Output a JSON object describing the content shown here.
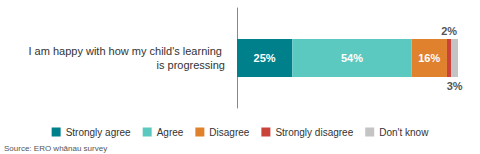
{
  "chart_data": {
    "type": "bar",
    "orientation": "horizontal",
    "stacked": true,
    "data_labels": true,
    "tick_labels": "y",
    "grid": false,
    "legend": "bottom",
    "categories": [
      "I am happy with how my child's learning is progressing"
    ],
    "xlim": [
      0,
      100
    ],
    "series": [
      {
        "name": "Strongly agree",
        "color": "#00808a",
        "values": [
          25
        ],
        "value_labels": [
          "25%"
        ]
      },
      {
        "name": "Agree",
        "color": "#5cc9c0",
        "values": [
          54
        ],
        "value_labels": [
          "54%"
        ]
      },
      {
        "name": "Disagree",
        "color": "#e0812e",
        "values": [
          16
        ],
        "value_labels": [
          "16%"
        ]
      },
      {
        "name": "Strongly disagree",
        "color": "#c9433a",
        "values": [
          2
        ],
        "value_labels": [
          "2%"
        ]
      },
      {
        "name": "Don't know",
        "color": "#c4c4c4",
        "values": [
          3
        ],
        "value_labels": [
          "3%"
        ]
      }
    ],
    "annotations": [
      "Source: ERO whānau survey"
    ]
  }
}
